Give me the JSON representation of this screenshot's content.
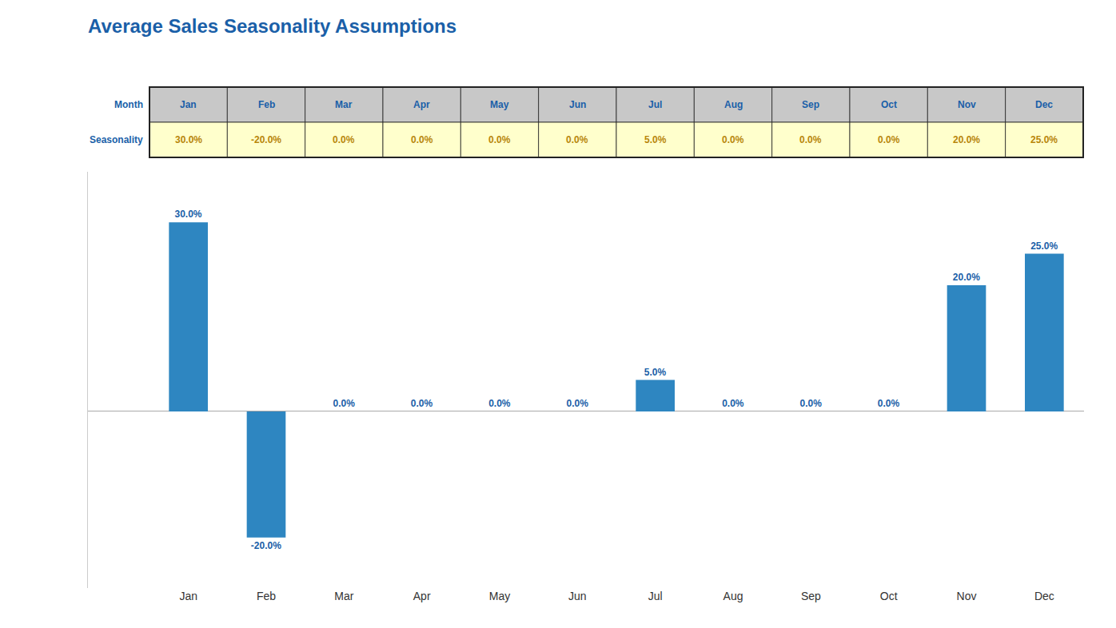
{
  "chart_data": {
    "type": "bar",
    "title": "Average Sales Seasonality Assumptions",
    "categories": [
      "Jan",
      "Feb",
      "Mar",
      "Apr",
      "May",
      "Jun",
      "Jul",
      "Aug",
      "Sep",
      "Oct",
      "Nov",
      "Dec"
    ],
    "values": [
      30.0,
      -20.0,
      0.0,
      0.0,
      0.0,
      0.0,
      5.0,
      0.0,
      0.0,
      0.0,
      20.0,
      25.0
    ],
    "value_labels": [
      "30.0%",
      "-20.0%",
      "0.0%",
      "0.0%",
      "0.0%",
      "0.0%",
      "5.0%",
      "0.0%",
      "0.0%",
      "0.0%",
      "20.0%",
      "25.0%"
    ],
    "color": "#2E86C1",
    "ylim": [
      -28,
      38
    ],
    "grid": false,
    "data_labels": true,
    "tick_labels": "x",
    "annotations": [
      "Month",
      "Seasonality"
    ]
  }
}
